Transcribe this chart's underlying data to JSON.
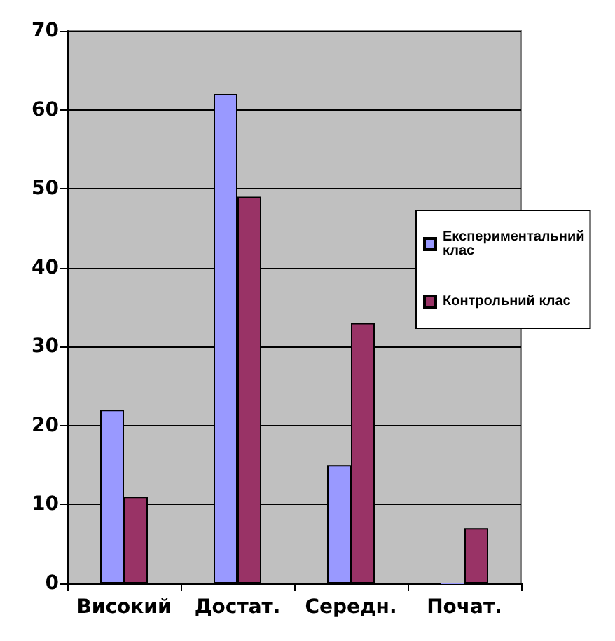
{
  "chart_data": {
    "type": "bar",
    "categories": [
      "Високий",
      "Достат.",
      "Середн.",
      "Почат."
    ],
    "series": [
      {
        "name": "Експериментальний клас",
        "color": "#9999ff",
        "values": [
          22,
          62,
          15,
          0
        ]
      },
      {
        "name": "Контрольний клас",
        "color": "#993366",
        "values": [
          11,
          49,
          33,
          7
        ]
      }
    ],
    "ylim": [
      0,
      70
    ],
    "yticks": [
      0,
      10,
      20,
      30,
      40,
      50,
      60,
      70
    ],
    "grid": "y",
    "legend": "right"
  }
}
